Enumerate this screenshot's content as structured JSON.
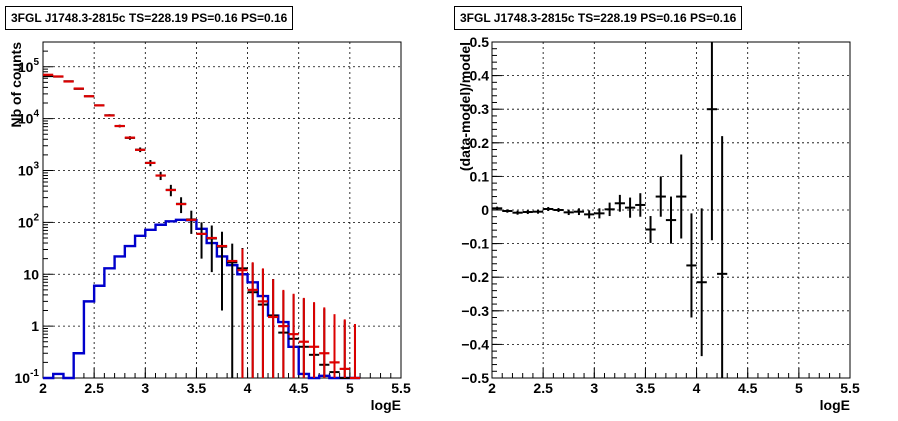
{
  "chart_data": [
    {
      "type": "histogram",
      "title": "3FGL J1748.3-2815c TS=228.19 PS=0.16 PS=0.16",
      "xlabel": "logE",
      "ylabel": "Nb of counts",
      "xlim": [
        2,
        5.5
      ],
      "ylim": [
        0.1,
        300000
      ],
      "log_y": true,
      "grid": true,
      "x_ticks": [
        "2",
        "2.5",
        "3",
        "3.5",
        "4",
        "4.5",
        "5",
        "5.5"
      ],
      "y_ticks": [
        {
          "value": 0.1,
          "base": "10",
          "exp": "-1"
        },
        {
          "value": 1,
          "base": "1",
          "exp": ""
        },
        {
          "value": 10,
          "base": "10",
          "exp": ""
        },
        {
          "value": 100,
          "base": "10",
          "exp": "2"
        },
        {
          "value": 1000,
          "base": "10",
          "exp": "3"
        },
        {
          "value": 10000,
          "base": "10",
          "exp": "4"
        },
        {
          "value": 100000,
          "base": "10",
          "exp": "5"
        }
      ],
      "bin_width": 0.1,
      "bin_centers": [
        2.05,
        2.15,
        2.25,
        2.35,
        2.45,
        2.55,
        2.65,
        2.75,
        2.85,
        2.95,
        3.05,
        3.15,
        3.25,
        3.35,
        3.45,
        3.55,
        3.65,
        3.75,
        3.85,
        3.95,
        4.05,
        4.15,
        4.25,
        4.35,
        4.45,
        4.55,
        4.65,
        4.75,
        4.85,
        4.95,
        5.05
      ],
      "series": [
        {
          "role": "total-model",
          "color": "#dd0000",
          "values": [
            70000,
            65000,
            52000,
            38000,
            27000,
            18000,
            11500,
            7200,
            4300,
            2500,
            1400,
            800,
            420,
            225,
            112,
            60,
            50,
            35,
            18,
            12,
            5,
            3,
            1.5,
            1,
            0.7,
            0.5,
            0.4,
            0.3,
            0.2,
            0.15,
            0.1
          ],
          "err_lo": [
            0,
            0,
            0,
            0,
            0,
            0,
            0,
            0,
            0,
            0,
            0,
            0,
            0,
            0,
            0,
            0,
            0,
            0,
            0,
            0,
            0,
            0,
            0,
            0,
            0,
            0,
            0,
            0,
            0,
            0,
            0
          ],
          "err_hi": [
            0,
            0,
            0,
            0,
            0,
            0,
            0,
            0,
            0,
            0,
            0,
            0,
            0,
            0,
            0,
            0,
            0,
            0,
            0,
            0,
            0,
            0,
            0,
            0,
            0,
            0,
            0,
            0,
            0,
            0,
            0
          ]
        },
        {
          "role": "data",
          "color": "#000000",
          "values": [
            66000,
            64500,
            52500,
            37500,
            27000,
            18000,
            11600,
            7200,
            4250,
            2520,
            1400,
            800,
            424,
            228,
            114,
            60,
            49,
            34,
            17,
            13,
            4.5,
            2.6,
            1.6,
            0.75,
            0.57,
            0.4,
            0.28,
            0.18,
            0.13,
            0.09,
            0.06
          ],
          "err_lo": [
            1500,
            1400,
            1200,
            1000,
            850,
            700,
            550,
            440,
            340,
            260,
            190,
            145,
            105,
            77,
            54,
            40,
            38,
            32,
            22,
            19,
            12,
            10,
            6.5,
            4,
            3.5,
            3,
            2.5,
            2,
            1.5,
            1.2,
            1
          ],
          "err_hi": [
            1500,
            1400,
            1200,
            1000,
            850,
            700,
            550,
            440,
            340,
            260,
            190,
            145,
            105,
            77,
            54,
            40,
            38,
            32,
            22,
            19,
            12,
            10,
            6.5,
            4,
            3.5,
            3,
            2.5,
            2,
            1.5,
            1.2,
            1
          ]
        },
        {
          "role": "source-model",
          "color": "#0000cc",
          "values": [
            0.1,
            0.12,
            0.1,
            0.3,
            3,
            6,
            13,
            22,
            35,
            55,
            72,
            90,
            105,
            112,
            110,
            75,
            40,
            22,
            15,
            10,
            7,
            3.8,
            1.6,
            1.2,
            0.4,
            0.12,
            0.09,
            0.11,
            0.1,
            0.09,
            0.08
          ]
        }
      ]
    },
    {
      "type": "scatter",
      "title": "3FGL J1748.3-2815c TS=228.19 PS=0.16 PS=0.16",
      "xlabel": "logE",
      "ylabel": "(data-model)/model",
      "xlim": [
        2,
        5.5
      ],
      "ylim": [
        -0.5,
        0.5
      ],
      "grid": true,
      "x_ticks": [
        "2",
        "2.5",
        "3",
        "3.5",
        "4",
        "4.5",
        "5",
        "5.5"
      ],
      "y_ticks": [
        "−0.5",
        "−0.4",
        "−0.3",
        "−0.2",
        "−0.1",
        "0",
        "0.1",
        "0.2",
        "0.3",
        "0.4",
        "0.5"
      ],
      "bin_width": 0.1,
      "points": [
        {
          "x": 2.05,
          "y": 0.005,
          "err": 0.005
        },
        {
          "x": 2.15,
          "y": -0.003,
          "err": 0.005
        },
        {
          "x": 2.25,
          "y": -0.008,
          "err": 0.006
        },
        {
          "x": 2.35,
          "y": -0.006,
          "err": 0.006
        },
        {
          "x": 2.45,
          "y": -0.005,
          "err": 0.006
        },
        {
          "x": 2.55,
          "y": 0.003,
          "err": 0.006
        },
        {
          "x": 2.65,
          "y": 0.0,
          "err": 0.006
        },
        {
          "x": 2.75,
          "y": -0.007,
          "err": 0.008
        },
        {
          "x": 2.85,
          "y": -0.005,
          "err": 0.01
        },
        {
          "x": 2.95,
          "y": -0.013,
          "err": 0.012
        },
        {
          "x": 3.05,
          "y": -0.01,
          "err": 0.015
        },
        {
          "x": 3.15,
          "y": 0.002,
          "err": 0.02
        },
        {
          "x": 3.25,
          "y": 0.02,
          "err": 0.025
        },
        {
          "x": 3.35,
          "y": 0.007,
          "err": 0.03
        },
        {
          "x": 3.45,
          "y": 0.015,
          "err": 0.035
        },
        {
          "x": 3.55,
          "y": -0.058,
          "err": 0.04
        },
        {
          "x": 3.65,
          "y": 0.04,
          "err": 0.06
        },
        {
          "x": 3.75,
          "y": -0.03,
          "err": 0.07
        },
        {
          "x": 3.85,
          "y": 0.04,
          "err": 0.125
        },
        {
          "x": 3.95,
          "y": -0.165,
          "err": 0.155
        },
        {
          "x": 4.05,
          "y": -0.215,
          "err": 0.22
        },
        {
          "x": 4.15,
          "y": 0.3,
          "err": 0.39
        },
        {
          "x": 4.25,
          "y": -0.19,
          "err": 0.41
        }
      ]
    }
  ]
}
